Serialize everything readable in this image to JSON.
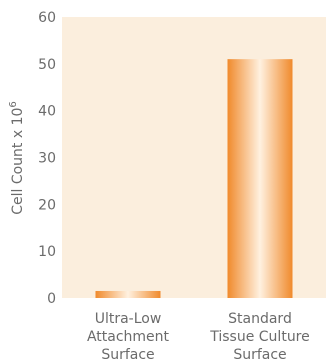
{
  "chart_data": {
    "type": "bar",
    "categories": [
      [
        "Ultra-Low",
        "Attachment",
        "Surface"
      ],
      [
        "Standard",
        "Tissue Culture",
        "Surface"
      ]
    ],
    "values": [
      1.5,
      51
    ],
    "ylabel": "Cell Count x 10",
    "ylabel_superscript": "6",
    "ylim": [
      0,
      60
    ],
    "yticks": [
      0,
      10,
      20,
      30,
      40,
      50,
      60
    ],
    "grid": false,
    "colors": {
      "plot_background": "#fbeedd",
      "bar_edge": "#f08a2c",
      "bar_center": "#fff1e0",
      "text": "#6b6b6b"
    }
  }
}
